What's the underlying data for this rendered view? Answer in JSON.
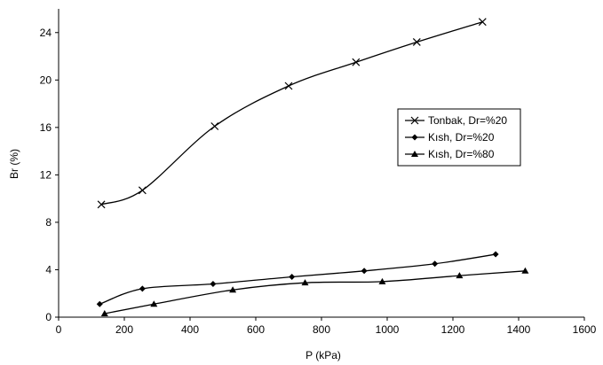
{
  "chart_data": {
    "type": "line",
    "title": "",
    "xlabel": "P (kPa)",
    "ylabel": "Br (%)",
    "xlim": [
      0,
      1600
    ],
    "ylim": [
      0,
      26
    ],
    "xticks": [
      0,
      200,
      400,
      600,
      800,
      1000,
      1200,
      1400,
      1600
    ],
    "yticks": [
      0,
      4,
      8,
      12,
      16,
      20,
      24
    ],
    "grid": false,
    "legend_position": "right",
    "series": [
      {
        "name": "Tonbak, Dr=%20",
        "marker": "x",
        "color": "#000000",
        "x": [
          130,
          255,
          475,
          700,
          905,
          1090,
          1290
        ],
        "y": [
          9.5,
          10.7,
          16.1,
          19.5,
          21.5,
          23.2,
          24.9
        ]
      },
      {
        "name": "Kısh, Dr=%20",
        "marker": "diamond",
        "color": "#000000",
        "x": [
          125,
          255,
          470,
          710,
          930,
          1145,
          1330
        ],
        "y": [
          1.1,
          2.4,
          2.8,
          3.4,
          3.9,
          4.5,
          5.3
        ]
      },
      {
        "name": "Kısh, Dr=%80",
        "marker": "triangle",
        "color": "#000000",
        "x": [
          140,
          290,
          530,
          750,
          985,
          1220,
          1420
        ],
        "y": [
          0.3,
          1.1,
          2.3,
          2.9,
          3.0,
          3.5,
          3.9
        ]
      }
    ]
  }
}
